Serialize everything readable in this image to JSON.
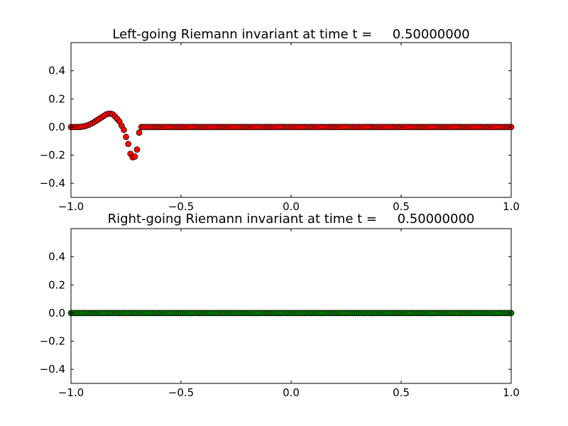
{
  "chart_data": [
    {
      "type": "scatter",
      "title": "Left-going Riemann invariant at time t =     0.50000000",
      "xlabel": "",
      "ylabel": "",
      "xlim": [
        -1.0,
        1.0
      ],
      "ylim": [
        -0.5,
        0.6
      ],
      "xticks": [
        "−1.0",
        "−0.5",
        "0.0",
        "0.5",
        "1.0"
      ],
      "xtick_values": [
        -1.0,
        -0.5,
        0.0,
        0.5,
        1.0
      ],
      "yticks": [
        "−0.4",
        "−0.2",
        "0.0",
        "0.2",
        "0.4"
      ],
      "ytick_values": [
        -0.4,
        -0.2,
        0.0,
        0.2,
        0.4
      ],
      "grid": false,
      "marker_color": "#ff0000",
      "marker_edge": "#000000",
      "series": [
        {
          "x_range": [
            -1.0,
            1.0
          ],
          "n_points": 201,
          "profile": [
            [
              -1.0,
              0.0
            ],
            [
              -0.96,
              0.0
            ],
            [
              -0.94,
              0.005
            ],
            [
              -0.92,
              0.015
            ],
            [
              -0.9,
              0.03
            ],
            [
              -0.88,
              0.05
            ],
            [
              -0.86,
              0.07
            ],
            [
              -0.84,
              0.09
            ],
            [
              -0.83,
              0.095
            ],
            [
              -0.82,
              0.095
            ],
            [
              -0.81,
              0.09
            ],
            [
              -0.8,
              0.075
            ],
            [
              -0.78,
              0.04
            ],
            [
              -0.76,
              -0.02
            ],
            [
              -0.74,
              -0.12
            ],
            [
              -0.73,
              -0.19
            ],
            [
              -0.72,
              -0.215
            ],
            [
              -0.71,
              -0.21
            ],
            [
              -0.7,
              -0.16
            ],
            [
              -0.69,
              -0.04
            ],
            [
              -0.685,
              0.0
            ],
            [
              1.0,
              0.0
            ]
          ]
        }
      ]
    },
    {
      "type": "scatter",
      "title": "Right-going Riemann invariant at time t =     0.50000000",
      "xlabel": "",
      "ylabel": "",
      "xlim": [
        -1.0,
        1.0
      ],
      "ylim": [
        -0.5,
        0.6
      ],
      "xticks": [
        "−1.0",
        "−0.5",
        "0.0",
        "0.5",
        "1.0"
      ],
      "xtick_values": [
        -1.0,
        -0.5,
        0.0,
        0.5,
        1.0
      ],
      "yticks": [
        "−0.4",
        "−0.2",
        "0.0",
        "0.2",
        "0.4"
      ],
      "ytick_values": [
        -0.4,
        -0.2,
        0.0,
        0.2,
        0.4
      ],
      "grid": false,
      "marker_color": "#008000",
      "marker_edge": "#000000",
      "series": [
        {
          "x_range": [
            -1.0,
            1.0
          ],
          "n_points": 201,
          "profile": [
            [
              -1.0,
              0.0
            ],
            [
              1.0,
              0.0
            ]
          ]
        }
      ]
    }
  ]
}
